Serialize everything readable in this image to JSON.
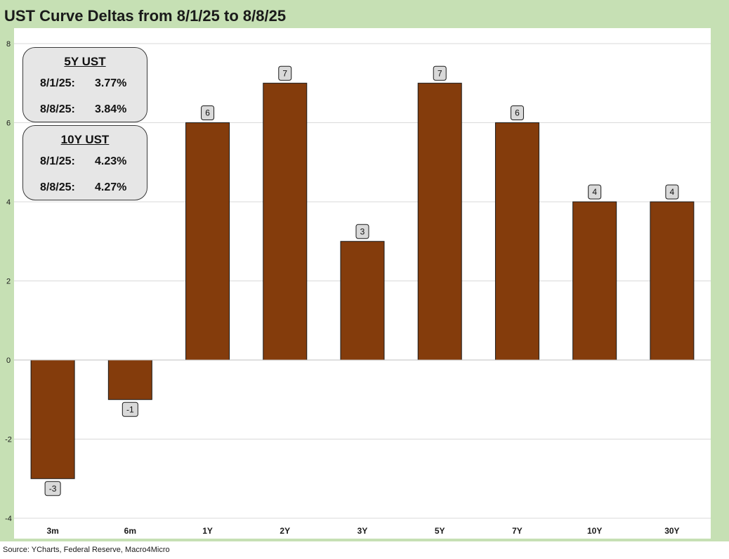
{
  "title": "UST Curve Deltas from 8/1/25 to 8/8/25",
  "source": "Source: YCharts, Federal Reserve, Macro4Micro",
  "info_boxes": [
    {
      "heading": "5Y UST",
      "rows": [
        {
          "date": "8/1/25:",
          "value": "3.77%"
        },
        {
          "date": "8/8/25:",
          "value": "3.84%"
        }
      ]
    },
    {
      "heading": "10Y UST",
      "rows": [
        {
          "date": "8/1/25:",
          "value": "4.23%"
        },
        {
          "date": "8/8/25:",
          "value": "4.27%"
        }
      ]
    }
  ],
  "chart_data": {
    "type": "bar",
    "title": "UST Curve Deltas from 8/1/25 to 8/8/25",
    "categories": [
      "3m",
      "6m",
      "1Y",
      "2Y",
      "3Y",
      "5Y",
      "7Y",
      "10Y",
      "30Y"
    ],
    "values": [
      -3,
      -1,
      6,
      7,
      3,
      7,
      6,
      4,
      4
    ],
    "ylim": [
      -4,
      8
    ],
    "yticks": [
      -4,
      -2,
      0,
      2,
      4,
      6,
      8
    ],
    "grid": true,
    "bar_color": "#843c0c"
  }
}
